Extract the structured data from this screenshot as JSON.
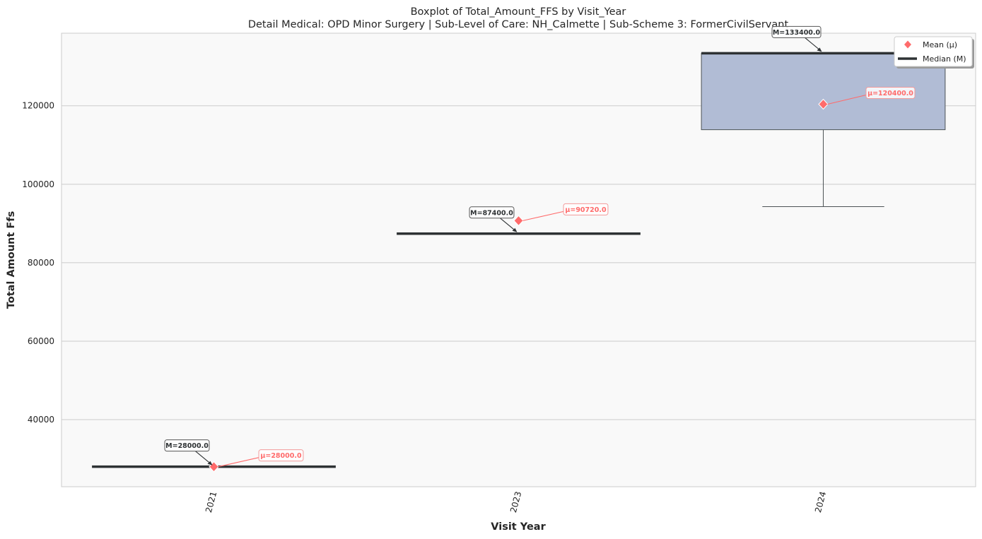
{
  "chart_data": {
    "type": "box",
    "title": "Boxplot of Total_Amount_FFS by Visit_Year",
    "subtitle": "Detail Medical: OPD Minor Surgery | Sub-Level of Care: NH_Calmette | Sub-Scheme 3: FormerCivilServant",
    "xlabel": "Visit Year",
    "ylabel": "Total Amount Ffs",
    "categories": [
      "2021",
      "2023",
      "2024"
    ],
    "ylim": [
      22900,
      138500
    ],
    "yticks": [
      40000,
      60000,
      80000,
      100000,
      120000
    ],
    "ytick_labels": [
      "40000",
      "60000",
      "80000",
      "100000",
      "120000"
    ],
    "grid": "horizontal",
    "boxes": [
      {
        "category": "2021",
        "q1": 28000,
        "q3": 28000,
        "median": 28000,
        "whisker_low": 28000,
        "whisker_high": 28000,
        "mean": 28000
      },
      {
        "category": "2023",
        "q1": 87400,
        "q3": 87400,
        "median": 87400,
        "whisker_low": 87400,
        "whisker_high": 87400,
        "mean": 90720
      },
      {
        "category": "2024",
        "q1": 113900,
        "q3": 133400,
        "median": 133400,
        "whisker_low": 94300,
        "whisker_high": 133400,
        "mean": 120400
      }
    ],
    "median_labels": [
      "M=28000.0",
      "M=87400.0",
      "M=133400.0"
    ],
    "mean_labels": [
      "μ=28000.0",
      "μ=90720.0",
      "μ=120400.0"
    ],
    "legend": {
      "position": "top-right",
      "items": [
        {
          "label": "Mean (μ)",
          "marker": "diamond"
        },
        {
          "label": "Median (M)",
          "marker": "line"
        }
      ]
    },
    "colors": {
      "box_fill": "#b1bcd5",
      "box_edge": "#4d5356",
      "median": "#2e3234",
      "mean": "#ff6b6b",
      "plot_bg": "#f9f9f9",
      "grid": "#cccccc"
    }
  }
}
